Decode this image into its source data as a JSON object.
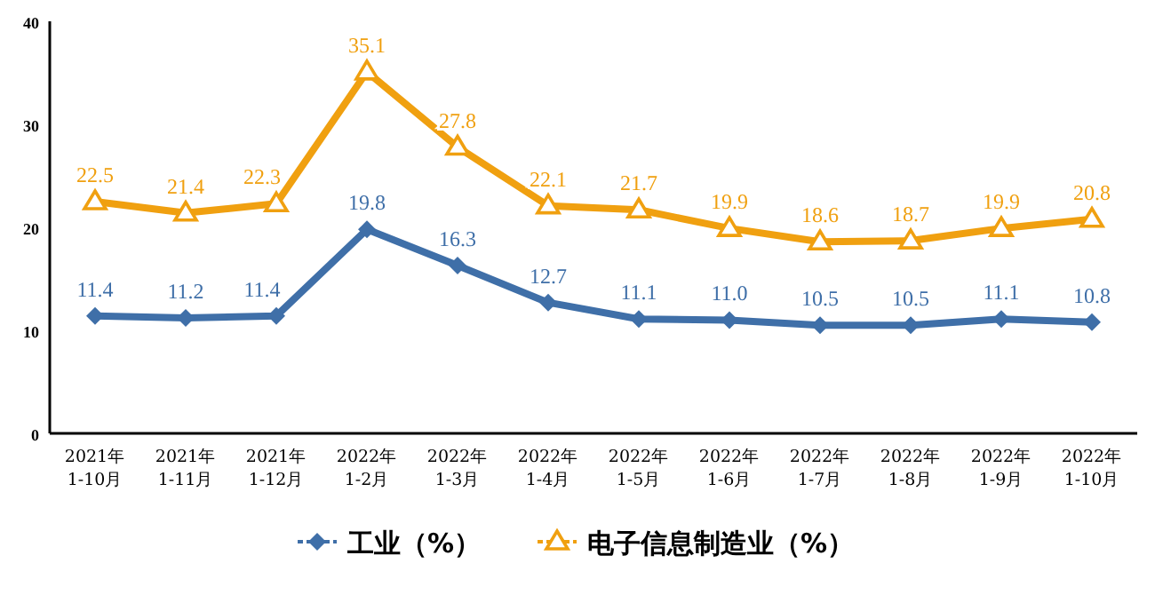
{
  "chart_data": {
    "type": "line",
    "categories": [
      "2021年\n1-10月",
      "2021年\n1-11月",
      "2021年\n1-12月",
      "2022年\n1-2月",
      "2022年\n1-3月",
      "2022年\n1-4月",
      "2022年\n1-5月",
      "2022年\n1-6月",
      "2022年\n1-7月",
      "2022年\n1-8月",
      "2022年\n1-9月",
      "2022年\n1-10月"
    ],
    "series": [
      {
        "name": "工业（%）",
        "color": "#3f6fa8",
        "marker": "diamond",
        "values": [
          11.4,
          11.2,
          11.4,
          19.8,
          16.3,
          12.7,
          11.1,
          11.0,
          10.5,
          10.5,
          11.1,
          10.8
        ],
        "value_labels": [
          "11.4",
          "11.2",
          "11.4",
          "19.8",
          "16.3",
          "12.7",
          "11.1",
          "11.0",
          "10.5",
          "10.5",
          "11.1",
          "10.8"
        ]
      },
      {
        "name": "电子信息制造业（%）",
        "color": "#f0a010",
        "marker": "triangle",
        "values": [
          22.5,
          21.4,
          22.3,
          35.1,
          27.8,
          22.1,
          21.7,
          19.9,
          18.6,
          18.7,
          19.9,
          20.8
        ]
      }
    ],
    "ylim": [
      0,
      40
    ],
    "yticks": [
      0,
      10,
      20,
      30,
      40
    ],
    "grid": false,
    "legend": "bottom",
    "data_labels": true
  }
}
